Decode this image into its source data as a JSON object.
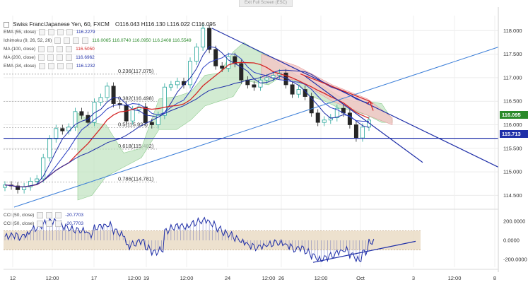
{
  "header": {
    "exit_fullscreen": "Exit Full Screen (ESC)",
    "symbol": "Swiss Franc/Japanese Yen, 60, FXCM",
    "ohlc": "O116.043 H116.130 L116.022 C116.095"
  },
  "indicators": [
    {
      "label": "EMA (55, close)",
      "value": "116.2279",
      "color": "#1f2fa8"
    },
    {
      "label": "Ichimoku (9, 26, 52, 26)",
      "value": "116.0065  116.0740  116.0950  116.2408  116.5549",
      "color": "#2a8a2a"
    },
    {
      "label": "MA (100, close)",
      "value": "116.5050",
      "color": "#d42424"
    },
    {
      "label": "MA (200, close)",
      "value": "116.6962",
      "color": "#1f2fa8"
    },
    {
      "label": "EMA (34, close)",
      "value": "116.1232",
      "color": "#1f2fa8"
    }
  ],
  "oscillator_legend": [
    {
      "label": "CCI (50, close)",
      "value": "-20.7703"
    },
    {
      "label": "CCI (50, close)",
      "value": "-20.7703"
    }
  ],
  "price_axis": {
    "labels": [
      "118.000",
      "117.500",
      "117.000",
      "116.500",
      "116.000",
      "115.500",
      "115.000",
      "114.500"
    ],
    "current_price": "116.095",
    "support_price": "115.713",
    "current_color": "#2a8a2a",
    "support_color": "#1f2fa8"
  },
  "cci_axis": {
    "labels": [
      "200.0000",
      "0.0000",
      "-200.0000"
    ]
  },
  "time_axis": {
    "labels": [
      "12",
      "12:00",
      "17",
      "12:00",
      "19",
      "12:00",
      "24",
      "12:00",
      "26",
      "12:00",
      "Oct",
      "3",
      "12:00",
      "8"
    ]
  },
  "fib_labels": [
    {
      "text": "0.236(117.075)",
      "price": 117.075
    },
    {
      "text": "0.382(116.498)",
      "price": 116.498
    },
    {
      "text": "0.5(115.937)",
      "price": 115.937
    },
    {
      "text": "0.618(115.482)",
      "price": 115.482
    },
    {
      "text": "0.786(114.781)",
      "price": 114.781
    }
  ],
  "colors": {
    "candle_up": "#26a69a",
    "candle_down": "#262626",
    "cloud_bull": "#bfe3bf",
    "cloud_bear": "#f4c5c5",
    "trend_line": "#1f2fa8",
    "cci_band": "#e9d9c2",
    "cci_line": "#1f2fa8"
  },
  "chart_data": {
    "type": "line",
    "title": "Swiss Franc/Japanese Yen, 60, FXCM",
    "y_range": [
      114.25,
      118.2
    ],
    "cci_range": [
      -280,
      280
    ],
    "grid": true,
    "series": [
      {
        "name": "CHF/JPY close (approx.)",
        "values": [
          114.72,
          114.7,
          114.62,
          114.68,
          114.8,
          114.85,
          115.3,
          115.7,
          115.92,
          115.87,
          115.95,
          116.28,
          116.2,
          116.05,
          116.48,
          116.58,
          116.82,
          116.45,
          116.42,
          116.08,
          116.32,
          116.38,
          116.05,
          116.0,
          116.2,
          116.8,
          116.85,
          116.92,
          116.85,
          117.35,
          117.65,
          118.05,
          117.6,
          117.25,
          117.2,
          117.45,
          117.3,
          116.95,
          116.85,
          116.8,
          116.95,
          117.0,
          117.05,
          117.1,
          116.85,
          116.65,
          116.75,
          116.6,
          116.25,
          116.05,
          116.1,
          116.15,
          116.35,
          116.25,
          116.0,
          115.72,
          115.95,
          116.1
        ]
      },
      {
        "name": "CCI (50, close) (approx.)",
        "values": [
          40,
          50,
          30,
          60,
          120,
          150,
          180,
          200,
          170,
          140,
          120,
          110,
          100,
          60,
          130,
          150,
          160,
          100,
          60,
          -60,
          -40,
          -10,
          -80,
          -120,
          -100,
          100,
          130,
          150,
          140,
          180,
          200,
          210,
          170,
          120,
          80,
          60,
          20,
          -20,
          -60,
          -80,
          -60,
          -40,
          -20,
          -30,
          -60,
          -100,
          -80,
          -120,
          -160,
          -200,
          -180,
          -160,
          -120,
          -100,
          -150,
          -200,
          -120,
          -20
        ]
      }
    ]
  }
}
